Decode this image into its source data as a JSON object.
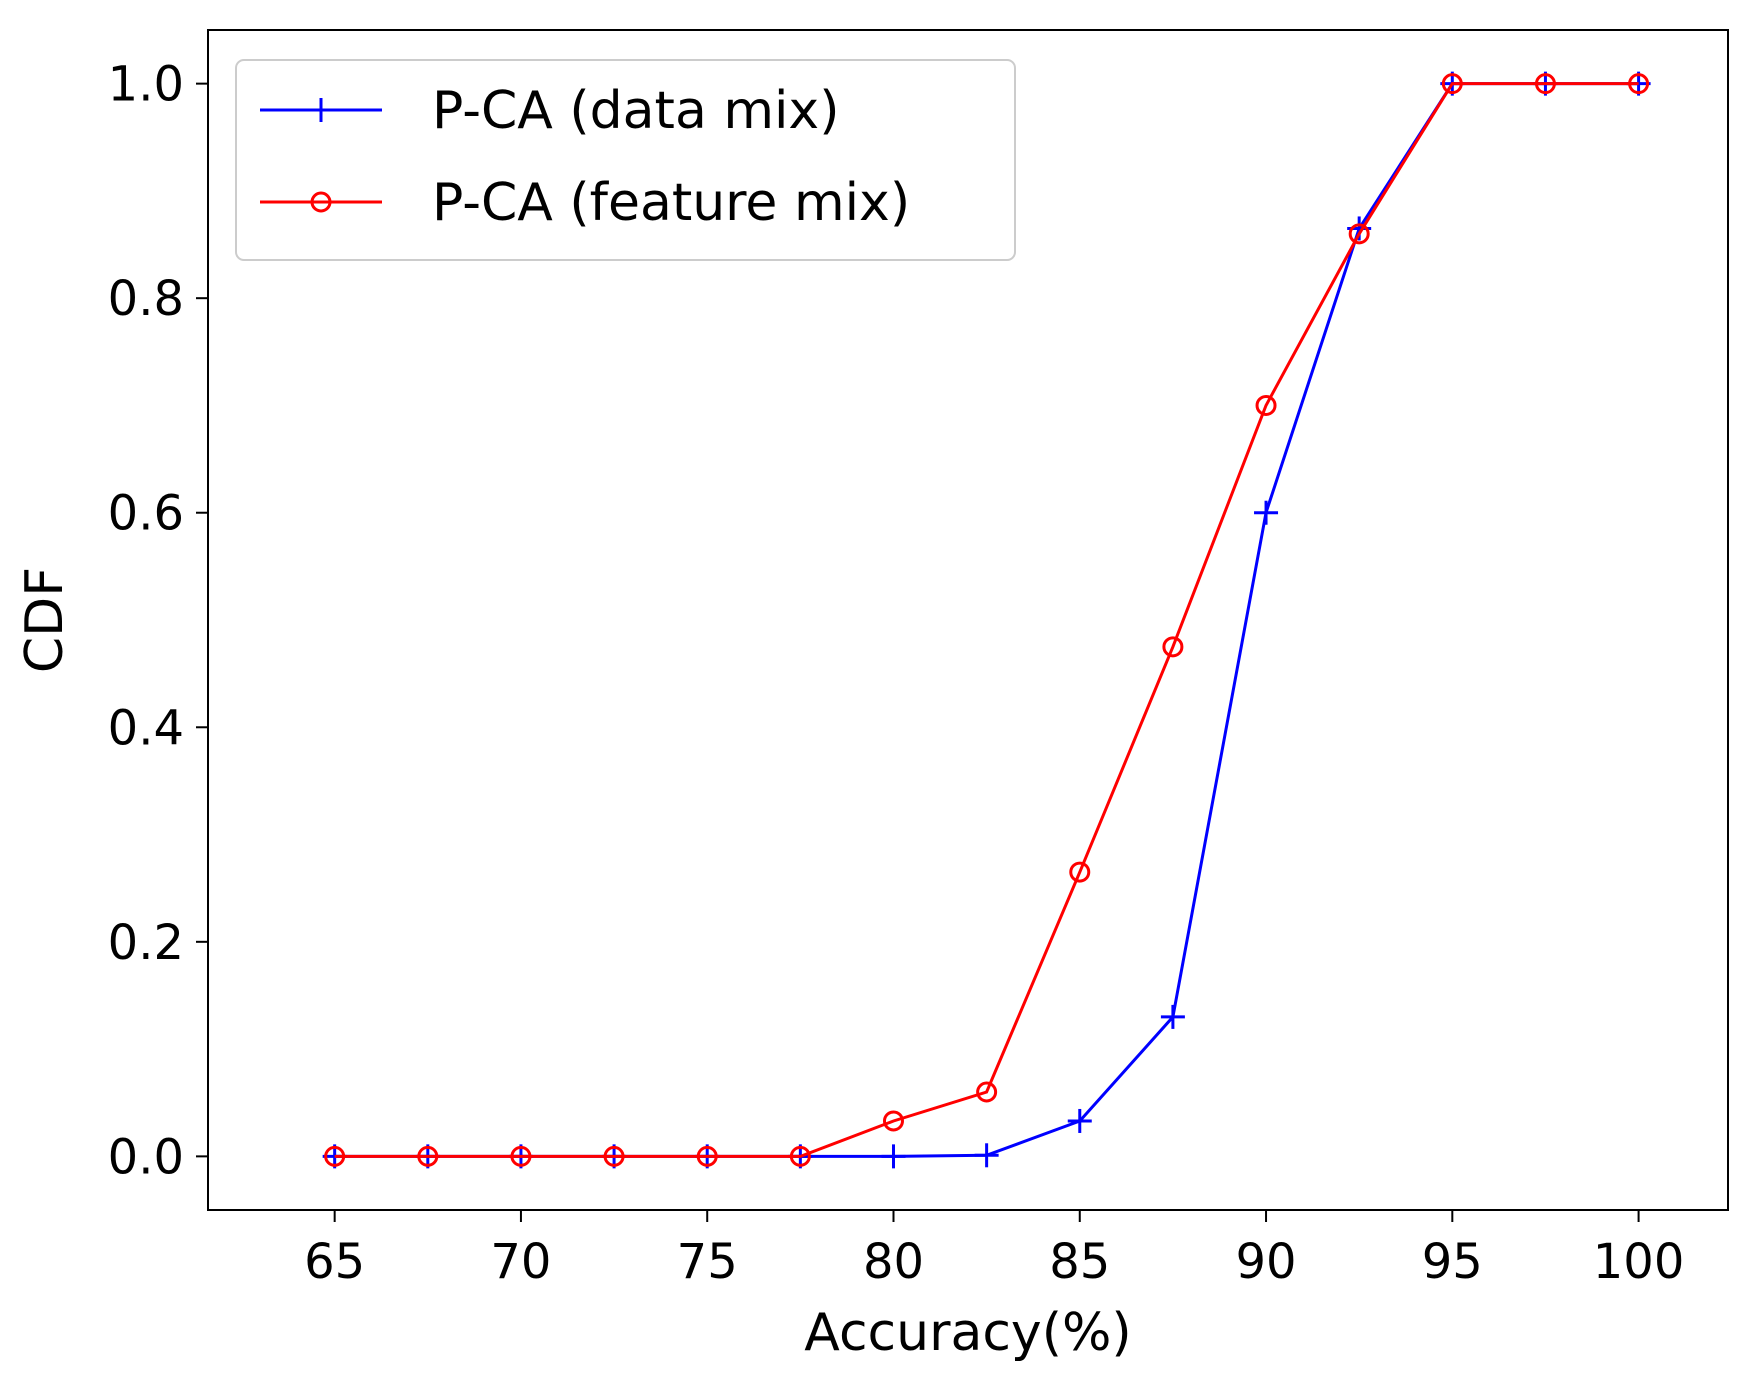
{
  "chart_data": {
    "type": "line",
    "title": "",
    "xlabel": "Accuracy(%)",
    "ylabel": "CDF",
    "xlim": [
      61.6,
      102.4
    ],
    "ylim": [
      -0.05,
      1.05
    ],
    "xticks": [
      65,
      70,
      75,
      80,
      85,
      90,
      95,
      100
    ],
    "xtick_labels": [
      "65",
      "70",
      "75",
      "80",
      "85",
      "90",
      "95",
      "100"
    ],
    "yticks": [
      0.0,
      0.2,
      0.4,
      0.6,
      0.8,
      1.0
    ],
    "ytick_labels": [
      "0.0",
      "0.2",
      "0.4",
      "0.6",
      "0.8",
      "1.0"
    ],
    "grid": false,
    "legend_position": "top-left",
    "x": [
      65,
      67.5,
      70,
      72.5,
      75,
      77.5,
      80,
      82.5,
      85,
      87.5,
      90,
      92.5,
      95,
      97.5,
      100
    ],
    "series": [
      {
        "name": "P-CA (data mix)",
        "color": "#0000ff",
        "marker": "plus",
        "values": [
          0,
          0,
          0,
          0,
          0,
          0,
          0,
          0.001,
          0.033,
          0.13,
          0.6,
          0.865,
          1.0,
          1.0,
          1.0
        ]
      },
      {
        "name": "P-CA (feature mix)",
        "color": "#ff0000",
        "marker": "circle",
        "values": [
          0,
          0,
          0,
          0,
          0,
          0,
          0.033,
          0.06,
          0.265,
          0.475,
          0.7,
          0.86,
          1.0,
          1.0,
          1.0
        ]
      }
    ]
  }
}
